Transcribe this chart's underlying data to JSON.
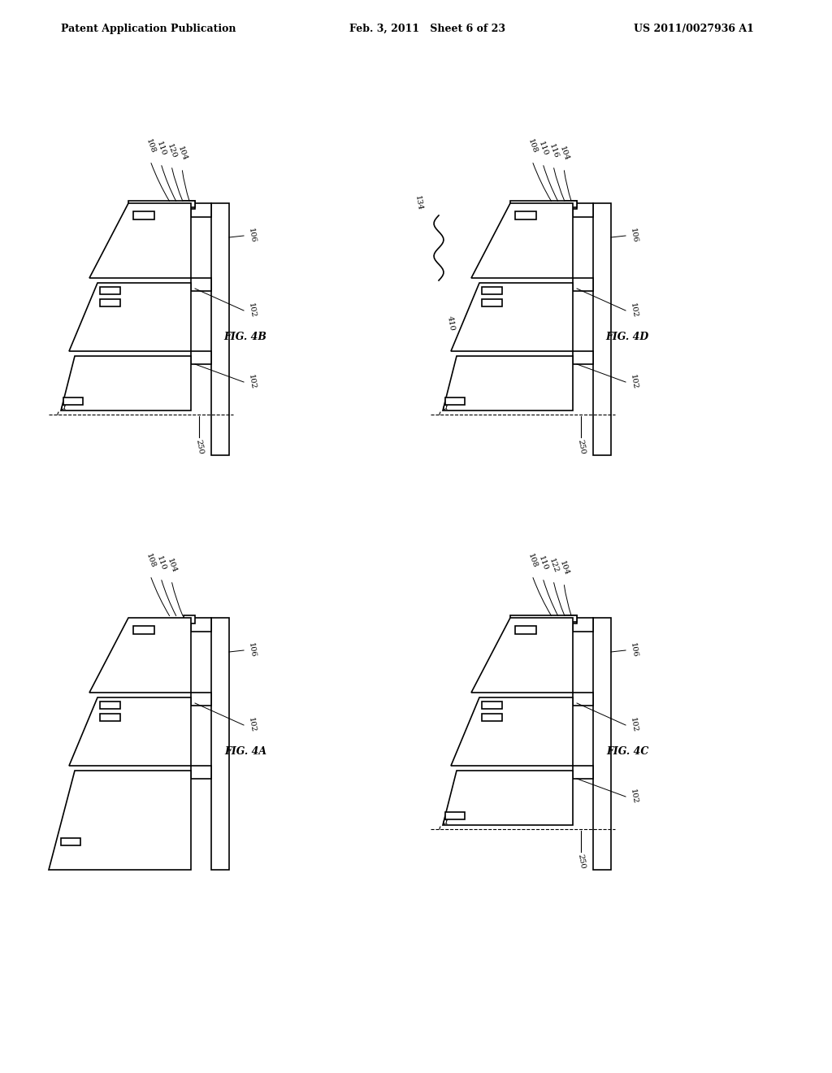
{
  "title_left": "Patent Application Publication",
  "title_center": "Feb. 3, 2011   Sheet 6 of 23",
  "title_right": "US 2011/0027936 A1",
  "bg_color": "#ffffff",
  "line_color": "#000000",
  "fig_label_color": "#000000",
  "figures": [
    "FIG. 4B",
    "FIG. 4D",
    "FIG. 4A",
    "FIG. 4C"
  ]
}
